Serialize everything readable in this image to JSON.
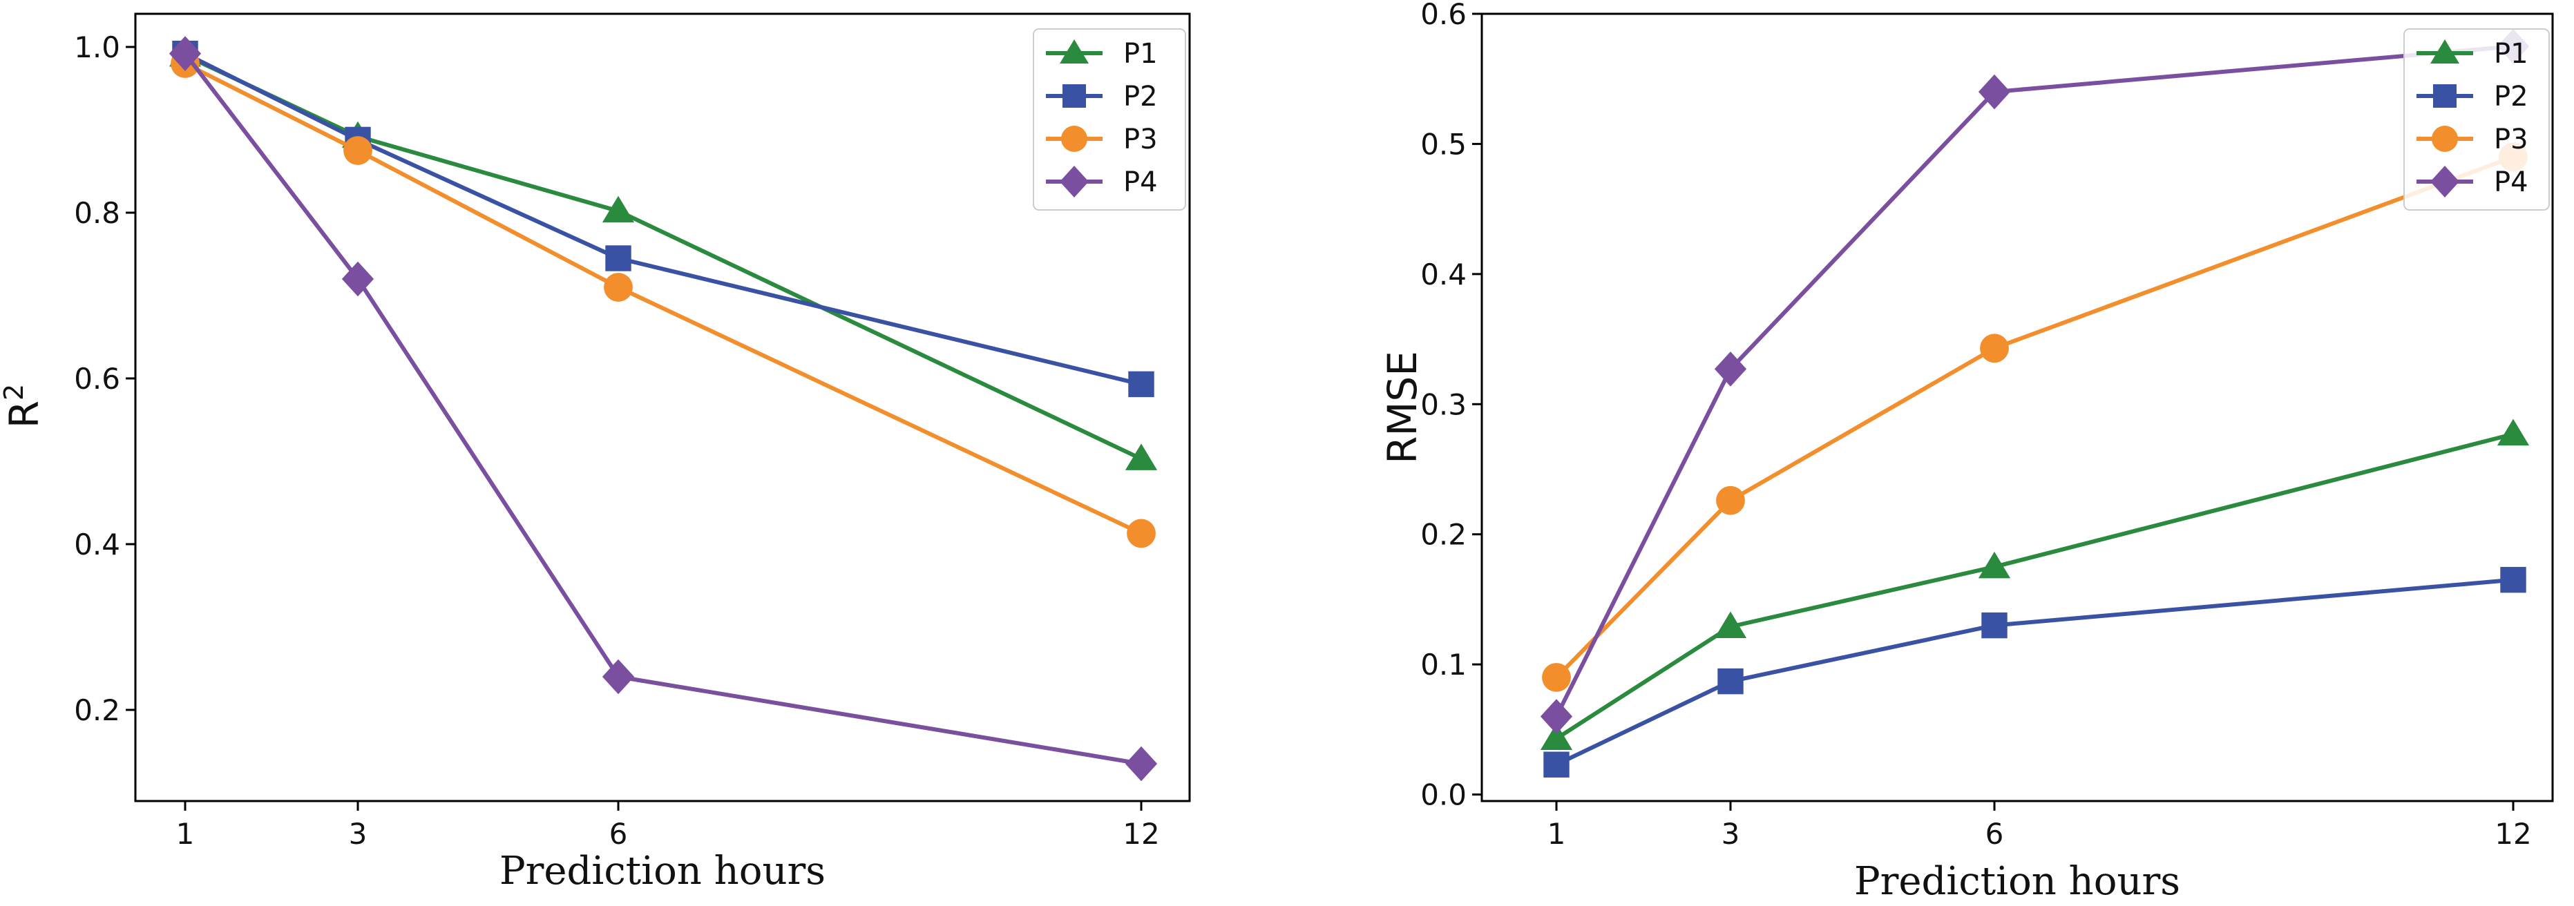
{
  "chart_data": [
    {
      "type": "line",
      "x": [
        1,
        3,
        6,
        12
      ],
      "x_ticks": [
        "1",
        "3",
        "6",
        "12"
      ],
      "xlabel": "Prediction hours",
      "ylabel": "R",
      "ylabel_superscript": "2",
      "ylim": [
        0.09,
        1.04
      ],
      "y_ticks": [
        0.2,
        0.4,
        0.6,
        0.8,
        1.0
      ],
      "y_tick_labels": [
        "0.2",
        "0.4",
        "0.6",
        "0.8",
        "1.0"
      ],
      "grid": false,
      "legend_position": "top-right",
      "series": [
        {
          "name": "P1",
          "color": "#2a8a3e",
          "marker": "triangle",
          "values": [
            0.99,
            0.892,
            0.802,
            0.503
          ]
        },
        {
          "name": "P2",
          "color": "#3a52a4",
          "marker": "square",
          "values": [
            0.992,
            0.888,
            0.745,
            0.593
          ]
        },
        {
          "name": "P3",
          "color": "#f28e2b",
          "marker": "circle",
          "values": [
            0.98,
            0.875,
            0.71,
            0.413
          ]
        },
        {
          "name": "P4",
          "color": "#7b4fa0",
          "marker": "diamond",
          "values": [
            0.992,
            0.72,
            0.24,
            0.135
          ]
        }
      ]
    },
    {
      "type": "line",
      "x": [
        1,
        3,
        6,
        12
      ],
      "x_ticks": [
        "1",
        "3",
        "6",
        "12"
      ],
      "xlabel": "Prediction hours",
      "ylabel": "RMSE",
      "ylim": [
        -0.005,
        0.6
      ],
      "y_ticks": [
        0.0,
        0.1,
        0.2,
        0.3,
        0.4,
        0.5,
        0.6
      ],
      "y_tick_labels": [
        "0.0",
        "0.1",
        "0.2",
        "0.3",
        "0.4",
        "0.5",
        "0.6"
      ],
      "grid": false,
      "legend_position": "top-right",
      "series": [
        {
          "name": "P1",
          "color": "#2a8a3e",
          "marker": "triangle",
          "values": [
            0.043,
            0.129,
            0.175,
            0.277
          ]
        },
        {
          "name": "P2",
          "color": "#3a52a4",
          "marker": "square",
          "values": [
            0.023,
            0.087,
            0.13,
            0.165
          ]
        },
        {
          "name": "P3",
          "color": "#f28e2b",
          "marker": "circle",
          "values": [
            0.09,
            0.226,
            0.343,
            0.49
          ]
        },
        {
          "name": "P4",
          "color": "#7b4fa0",
          "marker": "diamond",
          "values": [
            0.06,
            0.327,
            0.54,
            0.575
          ]
        }
      ]
    }
  ]
}
